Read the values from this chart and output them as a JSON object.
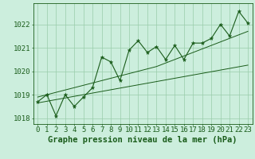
{
  "x": [
    0,
    1,
    2,
    3,
    4,
    5,
    6,
    7,
    8,
    9,
    10,
    11,
    12,
    13,
    14,
    15,
    16,
    17,
    18,
    19,
    20,
    21,
    22,
    23
  ],
  "y_main": [
    1018.7,
    1019.0,
    1018.1,
    1019.0,
    1018.5,
    1018.9,
    1019.3,
    1020.6,
    1020.4,
    1019.6,
    1020.9,
    1021.3,
    1020.8,
    1021.05,
    1020.5,
    1021.1,
    1020.5,
    1021.2,
    1021.2,
    1021.4,
    1022.0,
    1021.5,
    1022.55,
    1022.05
  ],
  "y_low": [
    1018.65,
    1018.72,
    1018.79,
    1018.86,
    1018.93,
    1019.0,
    1019.07,
    1019.14,
    1019.21,
    1019.28,
    1019.35,
    1019.42,
    1019.49,
    1019.56,
    1019.63,
    1019.7,
    1019.77,
    1019.84,
    1019.91,
    1019.98,
    1020.05,
    1020.12,
    1020.19,
    1020.26
  ],
  "y_high": [
    1018.9,
    1019.0,
    1019.1,
    1019.2,
    1019.3,
    1019.4,
    1019.5,
    1019.6,
    1019.7,
    1019.8,
    1019.9,
    1020.0,
    1020.1,
    1020.2,
    1020.35,
    1020.5,
    1020.65,
    1020.8,
    1020.95,
    1021.1,
    1021.25,
    1021.4,
    1021.55,
    1021.7
  ],
  "bg_color": "#cceedd",
  "line_color": "#1a5c1a",
  "grid_color": "#99ccaa",
  "ylim": [
    1017.75,
    1022.9
  ],
  "yticks": [
    1018,
    1019,
    1020,
    1021,
    1022
  ],
  "xlabel": "Graphe pression niveau de la mer (hPa)",
  "tick_fontsize": 6.5,
  "xlabel_fontsize": 7.5
}
